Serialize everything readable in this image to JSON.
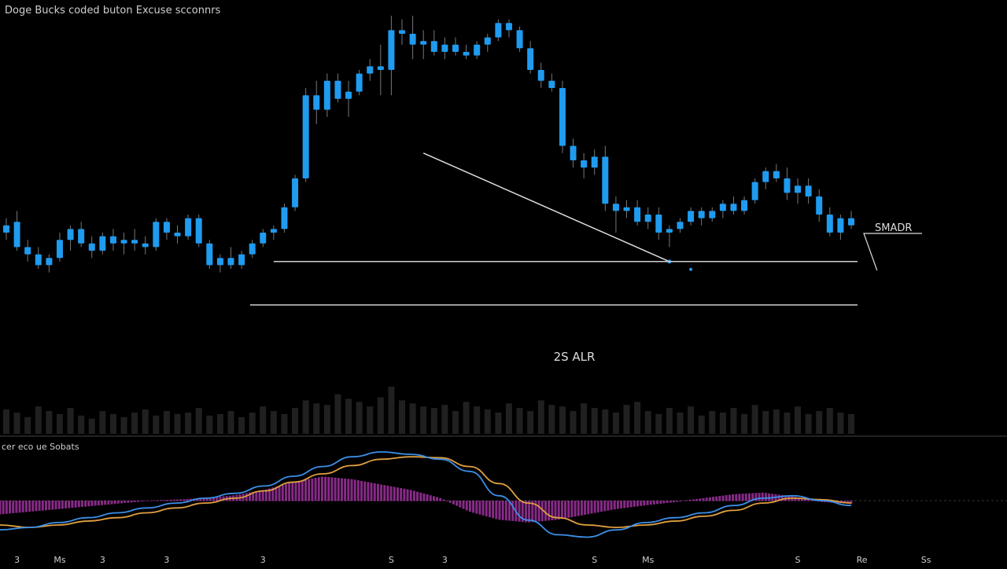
{
  "header": {
    "title": "Doge Bucks coded buton Excuse scconnrs"
  },
  "annotations": {
    "atr_label": "2S ALR",
    "smadr_label": "SMADR",
    "indicator_label": "cer eco ue Sobats"
  },
  "colors": {
    "background": "#000000",
    "candle": "#1f9bf0",
    "wick": "#777777",
    "volume": "#3a3a3a",
    "line_blue": "#3b8fe8",
    "line_orange": "#e0a040",
    "histogram": "#c03cc0",
    "annotation": "#dddddd"
  },
  "x_axis": {
    "ticks": [
      {
        "label": "3",
        "i": 1
      },
      {
        "label": "Ms",
        "i": 5
      },
      {
        "label": "3",
        "i": 9
      },
      {
        "label": "3",
        "i": 15
      },
      {
        "label": "3",
        "i": 24
      },
      {
        "label": "S",
        "i": 36
      },
      {
        "label": "3",
        "i": 41
      },
      {
        "label": "S",
        "i": 55
      },
      {
        "label": "Ms",
        "i": 60
      },
      {
        "label": "S",
        "i": 74
      },
      {
        "label": "Re",
        "i": 80
      },
      {
        "label": "Ss",
        "i": 86
      }
    ]
  },
  "chart_data": {
    "type": "candlestick",
    "price_range": [
      0,
      100
    ],
    "candles": [
      {
        "o": 40,
        "h": 44,
        "l": 38,
        "c": 42
      },
      {
        "o": 43,
        "h": 46,
        "l": 35,
        "c": 36
      },
      {
        "o": 36,
        "h": 38,
        "l": 32,
        "c": 34
      },
      {
        "o": 34,
        "h": 36,
        "l": 30,
        "c": 31
      },
      {
        "o": 31,
        "h": 34,
        "l": 29,
        "c": 33
      },
      {
        "o": 33,
        "h": 40,
        "l": 32,
        "c": 38
      },
      {
        "o": 38,
        "h": 42,
        "l": 35,
        "c": 41
      },
      {
        "o": 41,
        "h": 43,
        "l": 36,
        "c": 37
      },
      {
        "o": 37,
        "h": 39,
        "l": 33,
        "c": 35
      },
      {
        "o": 35,
        "h": 40,
        "l": 34,
        "c": 39
      },
      {
        "o": 39,
        "h": 41,
        "l": 35,
        "c": 37
      },
      {
        "o": 37,
        "h": 40,
        "l": 34,
        "c": 38
      },
      {
        "o": 38,
        "h": 41,
        "l": 35,
        "c": 37
      },
      {
        "o": 37,
        "h": 39,
        "l": 34,
        "c": 36
      },
      {
        "o": 36,
        "h": 44,
        "l": 35,
        "c": 43
      },
      {
        "o": 43,
        "h": 44,
        "l": 38,
        "c": 40
      },
      {
        "o": 40,
        "h": 42,
        "l": 37,
        "c": 39
      },
      {
        "o": 39,
        "h": 45,
        "l": 38,
        "c": 44
      },
      {
        "o": 44,
        "h": 45,
        "l": 36,
        "c": 37
      },
      {
        "o": 37,
        "h": 38,
        "l": 30,
        "c": 31
      },
      {
        "o": 31,
        "h": 34,
        "l": 29,
        "c": 33
      },
      {
        "o": 33,
        "h": 36,
        "l": 30,
        "c": 31
      },
      {
        "o": 31,
        "h": 35,
        "l": 30,
        "c": 34
      },
      {
        "o": 34,
        "h": 38,
        "l": 33,
        "c": 37
      },
      {
        "o": 37,
        "h": 41,
        "l": 36,
        "c": 40
      },
      {
        "o": 40,
        "h": 42,
        "l": 38,
        "c": 41
      },
      {
        "o": 41,
        "h": 48,
        "l": 40,
        "c": 47
      },
      {
        "o": 47,
        "h": 56,
        "l": 46,
        "c": 55
      },
      {
        "o": 55,
        "h": 80,
        "l": 54,
        "c": 78
      },
      {
        "o": 78,
        "h": 82,
        "l": 70,
        "c": 74
      },
      {
        "o": 74,
        "h": 84,
        "l": 72,
        "c": 82
      },
      {
        "o": 82,
        "h": 84,
        "l": 76,
        "c": 77
      },
      {
        "o": 77,
        "h": 82,
        "l": 72,
        "c": 79
      },
      {
        "o": 79,
        "h": 85,
        "l": 78,
        "c": 84
      },
      {
        "o": 84,
        "h": 88,
        "l": 82,
        "c": 86
      },
      {
        "o": 86,
        "h": 92,
        "l": 78,
        "c": 85
      },
      {
        "o": 85,
        "h": 100,
        "l": 78,
        "c": 96
      },
      {
        "o": 96,
        "h": 99,
        "l": 92,
        "c": 95
      },
      {
        "o": 95,
        "h": 100,
        "l": 88,
        "c": 92
      },
      {
        "o": 92,
        "h": 96,
        "l": 88,
        "c": 93
      },
      {
        "o": 93,
        "h": 96,
        "l": 89,
        "c": 90
      },
      {
        "o": 90,
        "h": 94,
        "l": 88,
        "c": 92
      },
      {
        "o": 92,
        "h": 94,
        "l": 89,
        "c": 90
      },
      {
        "o": 90,
        "h": 92,
        "l": 88,
        "c": 89
      },
      {
        "o": 89,
        "h": 93,
        "l": 88,
        "c": 92
      },
      {
        "o": 92,
        "h": 95,
        "l": 90,
        "c": 94
      },
      {
        "o": 94,
        "h": 99,
        "l": 93,
        "c": 98
      },
      {
        "o": 98,
        "h": 99,
        "l": 94,
        "c": 96
      },
      {
        "o": 96,
        "h": 97,
        "l": 90,
        "c": 91
      },
      {
        "o": 91,
        "h": 93,
        "l": 84,
        "c": 85
      },
      {
        "o": 85,
        "h": 87,
        "l": 80,
        "c": 82
      },
      {
        "o": 82,
        "h": 84,
        "l": 79,
        "c": 80
      },
      {
        "o": 80,
        "h": 82,
        "l": 62,
        "c": 64
      },
      {
        "o": 64,
        "h": 66,
        "l": 58,
        "c": 60
      },
      {
        "o": 60,
        "h": 62,
        "l": 55,
        "c": 58
      },
      {
        "o": 58,
        "h": 63,
        "l": 56,
        "c": 61
      },
      {
        "o": 61,
        "h": 64,
        "l": 46,
        "c": 48
      },
      {
        "o": 48,
        "h": 50,
        "l": 40,
        "c": 46
      },
      {
        "o": 46,
        "h": 49,
        "l": 44,
        "c": 47
      },
      {
        "o": 47,
        "h": 49,
        "l": 42,
        "c": 43
      },
      {
        "o": 43,
        "h": 47,
        "l": 41,
        "c": 45
      },
      {
        "o": 45,
        "h": 47,
        "l": 38,
        "c": 40
      },
      {
        "o": 40,
        "h": 42,
        "l": 36,
        "c": 41
      },
      {
        "o": 41,
        "h": 44,
        "l": 40,
        "c": 43
      },
      {
        "o": 43,
        "h": 47,
        "l": 42,
        "c": 46
      },
      {
        "o": 46,
        "h": 47,
        "l": 42,
        "c": 44
      },
      {
        "o": 44,
        "h": 47,
        "l": 43,
        "c": 46
      },
      {
        "o": 46,
        "h": 49,
        "l": 44,
        "c": 48
      },
      {
        "o": 48,
        "h": 50,
        "l": 45,
        "c": 46
      },
      {
        "o": 46,
        "h": 50,
        "l": 45,
        "c": 49
      },
      {
        "o": 49,
        "h": 55,
        "l": 48,
        "c": 54
      },
      {
        "o": 54,
        "h": 58,
        "l": 52,
        "c": 57
      },
      {
        "o": 57,
        "h": 59,
        "l": 54,
        "c": 55
      },
      {
        "o": 55,
        "h": 58,
        "l": 49,
        "c": 51
      },
      {
        "o": 51,
        "h": 55,
        "l": 48,
        "c": 53
      },
      {
        "o": 53,
        "h": 55,
        "l": 48,
        "c": 50
      },
      {
        "o": 50,
        "h": 52,
        "l": 43,
        "c": 45
      },
      {
        "o": 45,
        "h": 47,
        "l": 39,
        "c": 40
      },
      {
        "o": 40,
        "h": 45,
        "l": 38,
        "c": 44
      },
      {
        "o": 44,
        "h": 46,
        "l": 41,
        "c": 42
      }
    ],
    "volume": [
      32,
      28,
      22,
      36,
      30,
      26,
      34,
      24,
      20,
      30,
      26,
      22,
      28,
      32,
      24,
      30,
      26,
      28,
      34,
      24,
      26,
      30,
      22,
      28,
      36,
      30,
      26,
      34,
      44,
      40,
      38,
      52,
      46,
      42,
      36,
      48,
      62,
      44,
      40,
      36,
      34,
      38,
      30,
      42,
      36,
      32,
      28,
      40,
      34,
      30,
      44,
      38,
      36,
      30,
      40,
      34,
      32,
      28,
      38,
      42,
      30,
      26,
      34,
      28,
      36,
      24,
      30,
      28,
      34,
      26,
      38,
      30,
      32,
      28,
      36,
      26,
      30,
      34,
      28,
      26
    ],
    "overlays": {
      "trend_line": {
        "from": {
          "i": 39,
          "price": 62
        },
        "to": {
          "i": 62,
          "price": 32
        }
      },
      "atr_upper": 32,
      "atr_lower": 20,
      "atr_line_start_i": 25
    },
    "indicator": {
      "line_blue": [
        -0.6,
        -0.55,
        -0.45,
        -0.35,
        -0.25,
        -0.15,
        -0.05,
        0.05,
        0.15,
        0.3,
        0.5,
        0.7,
        0.9,
        1.0,
        0.95,
        0.85,
        0.6,
        0.1,
        -0.4,
        -0.7,
        -0.75,
        -0.6,
        -0.45,
        -0.35,
        -0.25,
        -0.1,
        0.05,
        0.1,
        0.0,
        -0.1
      ],
      "line_orange": [
        -0.5,
        -0.55,
        -0.5,
        -0.42,
        -0.35,
        -0.25,
        -0.15,
        -0.05,
        0.05,
        0.2,
        0.38,
        0.55,
        0.72,
        0.85,
        0.9,
        0.88,
        0.7,
        0.35,
        -0.05,
        -0.35,
        -0.5,
        -0.55,
        -0.5,
        -0.42,
        -0.32,
        -0.2,
        -0.05,
        0.05,
        0.02,
        -0.05
      ],
      "histogram": [
        -0.25,
        -0.2,
        -0.15,
        -0.1,
        -0.05,
        0.0,
        0.02,
        0.05,
        0.1,
        0.2,
        0.35,
        0.45,
        0.4,
        0.3,
        0.2,
        0.05,
        -0.2,
        -0.35,
        -0.4,
        -0.35,
        -0.25,
        -0.15,
        -0.08,
        -0.02,
        0.05,
        0.12,
        0.15,
        0.08,
        -0.02,
        -0.05
      ]
    }
  }
}
